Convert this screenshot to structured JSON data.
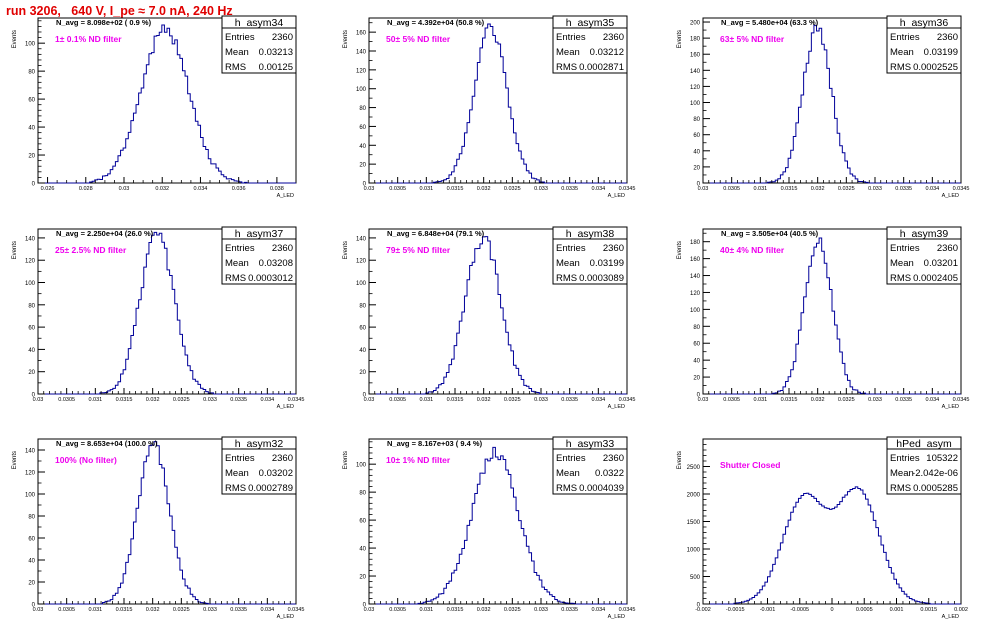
{
  "run_title": "run 3206,   640 V, I_pe ≈ 7.0 nA, 240 Hz",
  "colors": {
    "title": "#e00000",
    "annotation": "#ee00ee",
    "histogram": "#000099",
    "axis": "#000000",
    "background": "#ffffff"
  },
  "stats_labels": {
    "entries": "Entries",
    "mean": "Mean",
    "rms": "RMS"
  },
  "chart_data": [
    {
      "type": "histogram",
      "title": "h_asym34",
      "navg_label": "N_avg = 8.098e+02 ( 0.9 %)",
      "filter_label": "1± 0.1% ND filter",
      "stats": {
        "entries": "2360",
        "mean": "0.03213",
        "rms": "0.00125"
      },
      "ylabel": "Events",
      "xlabel": "A_LED",
      "xlim": [
        0.0255,
        0.039
      ],
      "ylim": [
        0,
        118
      ],
      "xticks": [
        0.026,
        0.028,
        0.03,
        0.032,
        0.034,
        0.036,
        0.038
      ],
      "xtick_labels": [
        "0.026",
        "0.028",
        "0.03",
        "0.032",
        "0.034",
        "0.036",
        "0.038"
      ],
      "yticks": [
        0,
        20,
        40,
        60,
        80,
        100
      ],
      "yminor": 5,
      "xminor": 4,
      "mean": 0.03213,
      "sigma": 0.00125,
      "peak": 110,
      "nbins": 100,
      "seed": 341
    },
    {
      "type": "histogram",
      "title": "h_asym35",
      "navg_label": "N_avg = 4.392e+04 (50.8 %)",
      "filter_label": "50± 5% ND filter",
      "stats": {
        "entries": "2360",
        "mean": "0.03212",
        "rms": "0.0002871"
      },
      "ylabel": "Events",
      "xlabel": "A_LED",
      "xlim": [
        0.03,
        0.0345
      ],
      "ylim": [
        0,
        175
      ],
      "xticks": [
        0.03,
        0.0305,
        0.031,
        0.0315,
        0.032,
        0.0325,
        0.033,
        0.0335,
        0.034,
        0.0345
      ],
      "xtick_labels": [
        "0.03",
        "0.0305",
        "0.031",
        "0.0315",
        "0.032",
        "0.0325",
        "0.033",
        "0.0335",
        "0.034",
        "0.0345"
      ],
      "yticks": [
        0,
        20,
        40,
        60,
        80,
        100,
        120,
        140,
        160
      ],
      "yminor": 2,
      "xminor": 5,
      "mean": 0.03212,
      "sigma": 0.000287,
      "peak": 165,
      "nbins": 100,
      "seed": 352
    },
    {
      "type": "histogram",
      "title": "h_asym36",
      "navg_label": "N_avg = 5.480e+04 (63.3 %)",
      "filter_label": "63± 5% ND filter",
      "stats": {
        "entries": "2360",
        "mean": "0.03199",
        "rms": "0.0002525"
      },
      "ylabel": "Events",
      "xlabel": "A_LED",
      "xlim": [
        0.03,
        0.0345
      ],
      "ylim": [
        0,
        205
      ],
      "xticks": [
        0.03,
        0.0305,
        0.031,
        0.0315,
        0.032,
        0.0325,
        0.033,
        0.0335,
        0.034,
        0.0345
      ],
      "xtick_labels": [
        "0.03",
        "0.0305",
        "0.031",
        "0.0315",
        "0.032",
        "0.0325",
        "0.033",
        "0.0335",
        "0.034",
        "0.0345"
      ],
      "yticks": [
        0,
        20,
        40,
        60,
        80,
        100,
        120,
        140,
        160,
        180,
        200
      ],
      "yminor": 2,
      "xminor": 5,
      "mean": 0.03199,
      "sigma": 0.000252,
      "peak": 192,
      "nbins": 100,
      "seed": 363
    },
    {
      "type": "histogram",
      "title": "h_asym37",
      "navg_label": "N_avg = 2.250e+04 (26.0 %)",
      "filter_label": "25± 2.5% ND filter",
      "stats": {
        "entries": "2360",
        "mean": "0.03208",
        "rms": "0.0003012"
      },
      "ylabel": "Events",
      "xlabel": "A_LED",
      "xlim": [
        0.03,
        0.0345
      ],
      "ylim": [
        0,
        148
      ],
      "xticks": [
        0.03,
        0.0305,
        0.031,
        0.0315,
        0.032,
        0.0325,
        0.033,
        0.0335,
        0.034,
        0.0345
      ],
      "xtick_labels": [
        "0.03",
        "0.0305",
        "0.031",
        "0.0315",
        "0.032",
        "0.0325",
        "0.033",
        "0.0335",
        "0.034",
        "0.0345"
      ],
      "yticks": [
        0,
        20,
        40,
        60,
        80,
        100,
        120,
        140
      ],
      "yminor": 2,
      "xminor": 5,
      "mean": 0.03208,
      "sigma": 0.000301,
      "peak": 142,
      "nbins": 100,
      "seed": 374
    },
    {
      "type": "histogram",
      "title": "h_asym38",
      "navg_label": "N_avg = 6.848e+04 (79.1 %)",
      "filter_label": "79± 5% ND filter",
      "stats": {
        "entries": "2360",
        "mean": "0.03199",
        "rms": "0.0003089"
      },
      "ylabel": "Events",
      "xlabel": "A_LED",
      "xlim": [
        0.03,
        0.0345
      ],
      "ylim": [
        0,
        148
      ],
      "xticks": [
        0.03,
        0.0305,
        0.031,
        0.0315,
        0.032,
        0.0325,
        0.033,
        0.0335,
        0.034,
        0.0345
      ],
      "xtick_labels": [
        "0.03",
        "0.0305",
        "0.031",
        "0.0315",
        "0.032",
        "0.0325",
        "0.033",
        "0.0335",
        "0.034",
        "0.0345"
      ],
      "yticks": [
        0,
        20,
        40,
        60,
        80,
        100,
        120,
        140
      ],
      "yminor": 2,
      "xminor": 5,
      "mean": 0.03199,
      "sigma": 0.000309,
      "peak": 140,
      "nbins": 100,
      "seed": 385
    },
    {
      "type": "histogram",
      "title": "h_asym39",
      "navg_label": "N_avg = 3.505e+04 (40.5 %)",
      "filter_label": "40± 4% ND filter",
      "stats": {
        "entries": "2360",
        "mean": "0.03201",
        "rms": "0.0002405"
      },
      "ylabel": "Events",
      "xlabel": "A_LED",
      "xlim": [
        0.03,
        0.0345
      ],
      "ylim": [
        0,
        195
      ],
      "xticks": [
        0.03,
        0.0305,
        0.031,
        0.0315,
        0.032,
        0.0325,
        0.033,
        0.0335,
        0.034,
        0.0345
      ],
      "xtick_labels": [
        "0.03",
        "0.0305",
        "0.031",
        "0.0315",
        "0.032",
        "0.0325",
        "0.033",
        "0.0335",
        "0.034",
        "0.0345"
      ],
      "yticks": [
        0,
        20,
        40,
        60,
        80,
        100,
        120,
        140,
        160,
        180
      ],
      "yminor": 2,
      "xminor": 5,
      "mean": 0.03201,
      "sigma": 0.00024,
      "peak": 182,
      "nbins": 100,
      "seed": 396
    },
    {
      "type": "histogram",
      "title": "h_asym32",
      "navg_label": "N_avg = 8.653e+04 (100.0 %)",
      "filter_label": "100% (No filter)",
      "stats": {
        "entries": "2360",
        "mean": "0.03202",
        "rms": "0.0002789"
      },
      "ylabel": "Events",
      "xlabel": "A_LED",
      "xlim": [
        0.03,
        0.0345
      ],
      "ylim": [
        0,
        150
      ],
      "xticks": [
        0.03,
        0.0305,
        0.031,
        0.0315,
        0.032,
        0.0325,
        0.033,
        0.0335,
        0.034,
        0.0345
      ],
      "xtick_labels": [
        "0.03",
        "0.0305",
        "0.031",
        "0.0315",
        "0.032",
        "0.0325",
        "0.033",
        "0.0335",
        "0.034",
        "0.0345"
      ],
      "yticks": [
        0,
        20,
        40,
        60,
        80,
        100,
        120,
        140
      ],
      "yminor": 2,
      "xminor": 5,
      "mean": 0.03202,
      "sigma": 0.000279,
      "peak": 144,
      "nbins": 100,
      "seed": 327
    },
    {
      "type": "histogram",
      "title": "h_asym33",
      "navg_label": "N_avg = 8.167e+03 ( 9.4 %)",
      "filter_label": "10± 1% ND filter",
      "stats": {
        "entries": "2360",
        "mean": "0.0322",
        "rms": "0.0004039"
      },
      "ylabel": "Events",
      "xlabel": "A_LED",
      "xlim": [
        0.03,
        0.0345
      ],
      "ylim": [
        0,
        118
      ],
      "xticks": [
        0.03,
        0.0305,
        0.031,
        0.0315,
        0.032,
        0.0325,
        0.033,
        0.0335,
        0.034,
        0.0345
      ],
      "xtick_labels": [
        "0.03",
        "0.0305",
        "0.031",
        "0.0315",
        "0.032",
        "0.0325",
        "0.033",
        "0.0335",
        "0.034",
        "0.0345"
      ],
      "yticks": [
        0,
        20,
        40,
        60,
        80,
        100
      ],
      "yminor": 5,
      "xminor": 5,
      "mean": 0.0322,
      "sigma": 0.000404,
      "peak": 108,
      "nbins": 100,
      "seed": 338
    },
    {
      "type": "histogram",
      "title": "hPed_asym",
      "navg_label": "",
      "filter_label": "Shutter Closed",
      "stats": {
        "entries": "105322",
        "mean": "-2.042e-06",
        "rms": "0.0005285"
      },
      "ylabel": "Events",
      "xlabel": "A_LED",
      "xlim": [
        -0.002,
        0.002
      ],
      "ylim": [
        0,
        3000
      ],
      "xticks": [
        -0.002,
        -0.0015,
        -0.001,
        -0.0005,
        0,
        0.0005,
        0.001,
        0.0015,
        0.002
      ],
      "xtick_labels": [
        "-0.002",
        "-0.0015",
        "-0.001",
        "-0.0005",
        "0",
        "0.0005",
        "0.001",
        "0.0015",
        "0.002"
      ],
      "yticks": [
        0,
        500,
        1000,
        1500,
        2000,
        2500
      ],
      "yminor": 5,
      "xminor": 5,
      "mean": 0.0,
      "sigma": 0.00053,
      "peak": 2750,
      "nbins": 100,
      "seed": 999,
      "bimodal": true
    }
  ]
}
